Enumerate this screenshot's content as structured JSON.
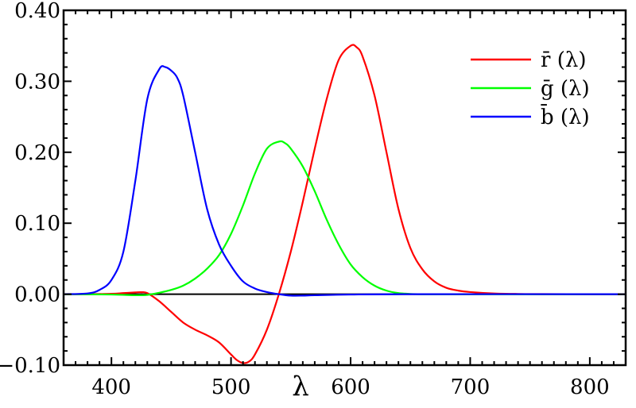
{
  "chart_data": {
    "type": "line",
    "title": "",
    "xlabel": "λ",
    "ylabel": "",
    "xlim": [
      360,
      830
    ],
    "ylim": [
      -0.1,
      0.4
    ],
    "x_ticks": [
      400,
      500,
      600,
      700,
      800
    ],
    "x_tick_labels": [
      "400",
      "500",
      "600",
      "700",
      "800"
    ],
    "y_ticks": [
      -0.1,
      0.0,
      0.1,
      0.2,
      0.3,
      0.4
    ],
    "y_tick_labels": [
      "−0.10",
      "0.00",
      "0.10",
      "0.20",
      "0.30",
      "0.40"
    ],
    "grid": false,
    "legend_position": "top-right",
    "zero_line": true,
    "series": [
      {
        "name": "r̄ (λ)",
        "color": "#ff0000",
        "x": [
          360,
          380,
          400,
          410,
          420,
          425,
          430,
          440,
          450,
          460,
          470,
          480,
          490,
          500,
          505,
          510,
          515,
          520,
          530,
          540,
          550,
          560,
          570,
          580,
          590,
          600,
          605,
          610,
          620,
          630,
          640,
          650,
          660,
          670,
          680,
          690,
          700,
          720,
          740,
          760,
          800,
          830
        ],
        "y": [
          0.0,
          0.0,
          0.0005,
          0.0015,
          0.0025,
          0.0028,
          0.0015,
          -0.01,
          -0.025,
          -0.04,
          -0.05,
          -0.058,
          -0.068,
          -0.085,
          -0.093,
          -0.097,
          -0.095,
          -0.085,
          -0.05,
          0.0,
          0.06,
          0.13,
          0.205,
          0.275,
          0.33,
          0.35,
          0.348,
          0.335,
          0.28,
          0.2,
          0.12,
          0.065,
          0.035,
          0.018,
          0.009,
          0.005,
          0.003,
          0.001,
          0.0003,
          0.0001,
          0.0,
          0.0
        ]
      },
      {
        "name": "ḡ (λ)",
        "color": "#00ff00",
        "x": [
          360,
          400,
          420,
          430,
          440,
          450,
          460,
          470,
          480,
          490,
          500,
          510,
          520,
          530,
          540,
          545,
          550,
          560,
          570,
          580,
          590,
          600,
          610,
          620,
          630,
          640,
          650,
          660,
          680,
          700,
          830
        ],
        "y": [
          0.0,
          -0.0005,
          -0.0015,
          -0.001,
          0.002,
          0.006,
          0.012,
          0.022,
          0.036,
          0.055,
          0.085,
          0.125,
          0.17,
          0.205,
          0.215,
          0.213,
          0.205,
          0.18,
          0.145,
          0.105,
          0.07,
          0.042,
          0.024,
          0.012,
          0.005,
          0.0015,
          0.0003,
          0.0,
          0.0,
          0.0,
          0.0
        ]
      },
      {
        "name": "b̄ (λ)",
        "color": "#0000ff",
        "x": [
          360,
          380,
          390,
          400,
          410,
          420,
          430,
          440,
          445,
          450,
          455,
          460,
          470,
          480,
          490,
          500,
          510,
          520,
          530,
          540,
          550,
          560,
          570,
          600,
          650,
          830
        ],
        "y": [
          0.0,
          0.001,
          0.006,
          0.02,
          0.06,
          0.16,
          0.275,
          0.317,
          0.32,
          0.315,
          0.305,
          0.28,
          0.2,
          0.12,
          0.07,
          0.04,
          0.018,
          0.008,
          0.003,
          0.0,
          -0.002,
          -0.002,
          -0.0015,
          -0.0005,
          0.0,
          0.0
        ]
      }
    ]
  }
}
